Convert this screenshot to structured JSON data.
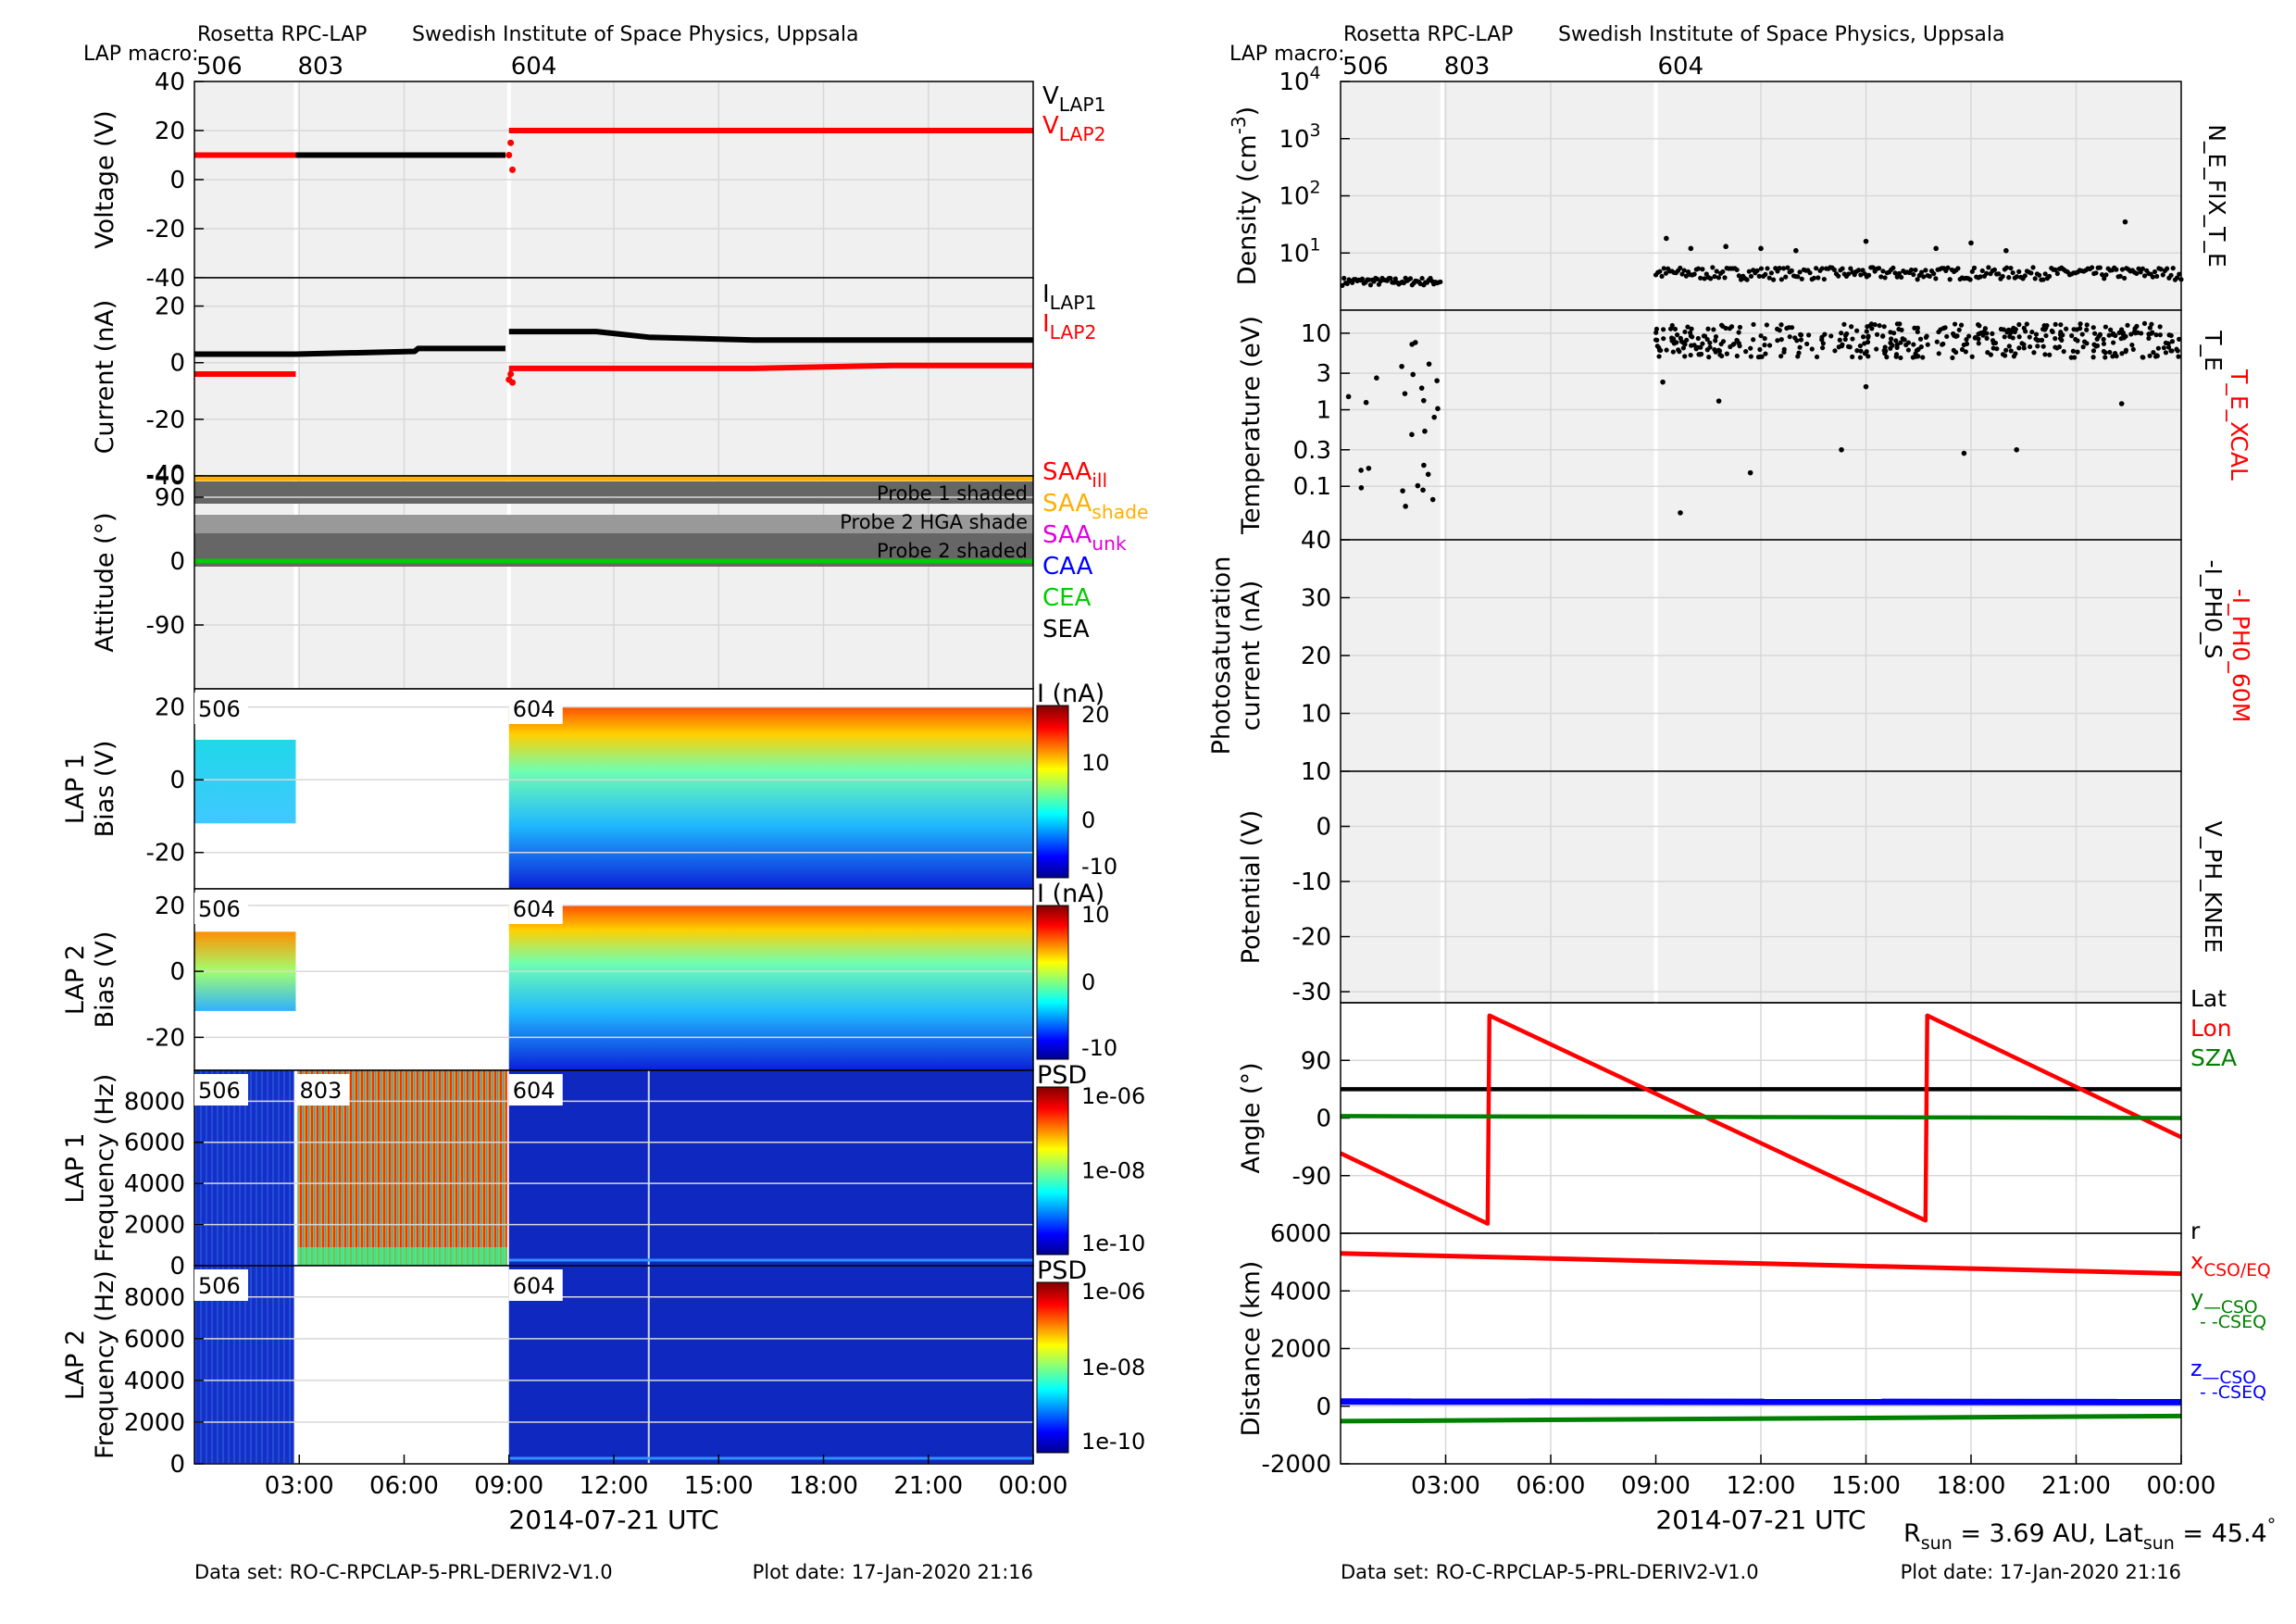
{
  "header": {
    "left_title": "Rosetta RPC-LAP",
    "institute": "Swedish Institute of Space Physics, Uppsala",
    "macro_label": "LAP macro:",
    "macros": [
      {
        "label": "506",
        "t": 0.0
      },
      {
        "label": "803",
        "t": 2.9
      },
      {
        "label": "604",
        "t": 9.0
      }
    ]
  },
  "footer": {
    "dataset": "Data set: RO-C-RPCLAP-5-PRL-DERIV2-V1.0",
    "plot_date": "Plot date: 17-Jan-2020 21:16",
    "xlabel": "2014-07-21 UTC",
    "rsun": "R",
    "rsun_sub": "sun",
    "rsun_val": " = 3.69 AU, Lat",
    "lat_sub": "sun",
    "lat_val": " = 45.4",
    "deg": "°"
  },
  "time_ticks": [
    "03:00",
    "06:00",
    "09:00",
    "12:00",
    "15:00",
    "18:00",
    "21:00",
    "00:00"
  ],
  "colors": {
    "red": "#ff0000",
    "black": "#000000",
    "green": "#00cc00",
    "dkgreen": "#008000",
    "orange": "#ffb000",
    "magenta": "#e000e0",
    "blue": "#0000ff",
    "spec_bg": "#0a1fb0"
  },
  "chart_data": [
    {
      "type": "scatter",
      "id": "voltage",
      "ylabel": "Voltage (V)",
      "ylim": [
        -40,
        40
      ],
      "yticks": [
        "40",
        "20",
        "0",
        "-20",
        "-40"
      ],
      "legend": [
        {
          "main": "V",
          "sub": "LAP1",
          "color": "#000000"
        },
        {
          "main": "V",
          "sub": "LAP2",
          "color": "#ff0000"
        }
      ],
      "series": [
        {
          "name": "V_LAP2",
          "color": "#ff0000",
          "segments": [
            {
              "t0": 0,
              "t1": 2.9,
              "y": 10
            },
            {
              "t0": 9.0,
              "t1": 24,
              "y": 20
            }
          ],
          "outliers": [
            [
              9.0,
              10
            ],
            [
              9.05,
              15
            ],
            [
              9.1,
              4
            ]
          ]
        },
        {
          "name": "V_LAP1",
          "color": "#000000",
          "segments": [
            {
              "t0": 2.9,
              "t1": 8.9,
              "y": 10
            }
          ]
        }
      ]
    },
    {
      "type": "scatter",
      "id": "current",
      "ylabel": "Current (nA)",
      "ylim": [
        -40,
        30
      ],
      "yticks": [
        "20",
        "0",
        "-20",
        "-40"
      ],
      "legend": [
        {
          "main": "I",
          "sub": "LAP1",
          "color": "#000000"
        },
        {
          "main": "I",
          "sub": "LAP2",
          "color": "#ff0000"
        }
      ],
      "series": [
        {
          "name": "I_LAP1",
          "color": "#000000",
          "points": [
            [
              0,
              3
            ],
            [
              2.9,
              3
            ],
            [
              6.3,
              4
            ],
            [
              6.4,
              5
            ],
            [
              8.9,
              5
            ],
            [
              9.0,
              11
            ],
            [
              11.5,
              11
            ],
            [
              13,
              9
            ],
            [
              16,
              8
            ],
            [
              24,
              8
            ]
          ]
        },
        {
          "name": "I_LAP2",
          "color": "#ff0000",
          "points": [
            [
              0,
              -4
            ],
            [
              2.9,
              -4
            ],
            [
              9.0,
              -2
            ],
            [
              16,
              -2
            ],
            [
              20,
              -1
            ],
            [
              24,
              -1
            ]
          ],
          "outliers": [
            [
              9.0,
              -6
            ],
            [
              9.05,
              -4
            ],
            [
              9.1,
              -7
            ]
          ]
        }
      ]
    },
    {
      "type": "area",
      "id": "attitude",
      "ylabel": "Attitude (°)",
      "ylim": [
        -180,
        120
      ],
      "yticks": [
        "90",
        "0",
        "-90"
      ],
      "annotations": [
        "Probe 1 shaded",
        "Probe 2 HGA shade",
        "Probe 2 shaded"
      ],
      "legend": [
        {
          "main": "SAA",
          "sub": "ill",
          "color": "#ff0000"
        },
        {
          "main": "SAA",
          "sub": "shade",
          "color": "#ffb000"
        },
        {
          "main": "SAA",
          "sub": "unk",
          "color": "#e000e0"
        },
        {
          "main": "CAA",
          "sub": "",
          "color": "#0000ff"
        },
        {
          "main": "CEA",
          "sub": "",
          "color": "#00cc00"
        },
        {
          "main": "SEA",
          "sub": "",
          "color": "#000000"
        }
      ],
      "series": [
        {
          "name": "CEA",
          "color": "#00cc00",
          "y": 0
        },
        {
          "name": "SAA shade",
          "color": "#ffb000",
          "y": 118
        }
      ]
    },
    {
      "type": "heatmap",
      "id": "lap1bias",
      "ylabel": "LAP 1",
      "ylabel2": "Bias (V)",
      "ylim": [
        -30,
        25
      ],
      "yticks": [
        "20",
        "0",
        "-20"
      ],
      "colorbar": {
        "label": "I (nA)",
        "ticks": [
          "20",
          "10",
          "0",
          "-10"
        ],
        "range": [
          -15,
          20
        ]
      },
      "labels": [
        {
          "text": "506",
          "t": 0
        },
        {
          "text": "604",
          "t": 9.0
        }
      ],
      "blocks": [
        {
          "t0": 0,
          "t1": 2.9,
          "y0": -12,
          "y1": 11
        },
        {
          "t0": 9.0,
          "t1": 24,
          "y0": -30,
          "y1": 20
        }
      ]
    },
    {
      "type": "heatmap",
      "id": "lap2bias",
      "ylabel": "LAP 2",
      "ylabel2": "Bias (V)",
      "ylim": [
        -30,
        25
      ],
      "yticks": [
        "20",
        "0",
        "-20"
      ],
      "colorbar": {
        "label": "I (nA)",
        "ticks": [
          "10",
          "0",
          "-10"
        ],
        "range": [
          -13,
          13
        ]
      },
      "labels": [
        {
          "text": "506",
          "t": 0
        },
        {
          "text": "604",
          "t": 9.0
        }
      ],
      "blocks": [
        {
          "t0": 0,
          "t1": 2.9,
          "y0": -12,
          "y1": 12
        },
        {
          "t0": 9.0,
          "t1": 24,
          "y0": -30,
          "y1": 20
        }
      ]
    },
    {
      "type": "heatmap",
      "id": "lap1psd",
      "ylabel": "LAP 1",
      "ylabel2": "Frequency (Hz)",
      "ylim": [
        0,
        9500
      ],
      "yticks": [
        "8000",
        "6000",
        "4000",
        "2000",
        "0"
      ],
      "colorbar": {
        "label": "PSD",
        "ticks": [
          "1e-06",
          "1e-08",
          "1e-10"
        ]
      },
      "labels": [
        {
          "text": "506",
          "t": 0
        },
        {
          "text": "803",
          "t": 2.9
        },
        {
          "text": "604",
          "t": 9.0
        }
      ]
    },
    {
      "type": "heatmap",
      "id": "lap2psd",
      "ylabel": "LAP 2",
      "ylabel2": "Frequency (Hz)",
      "ylim": [
        0,
        9500
      ],
      "yticks": [
        "8000",
        "6000",
        "4000",
        "2000",
        "0"
      ],
      "colorbar": {
        "label": "PSD",
        "ticks": [
          "1e-06",
          "1e-08",
          "1e-10"
        ]
      },
      "labels": [
        {
          "text": "506",
          "t": 0
        },
        {
          "text": "604",
          "t": 9.0
        }
      ]
    },
    {
      "type": "scatter",
      "id": "density",
      "ylabel": "Density (cm",
      "ylabel_sup": "-3",
      "ylabel_end": ")",
      "yscale": "log",
      "ylim": [
        1,
        10000
      ],
      "yticks": [
        {
          "b": "10",
          "e": "4"
        },
        {
          "b": "10",
          "e": "3"
        },
        {
          "b": "10",
          "e": "2"
        },
        {
          "b": "10",
          "e": "1"
        }
      ],
      "side_labels": [
        {
          "text": "N_E_FIX_T_E",
          "color": "#000000"
        }
      ],
      "series": [
        {
          "name": "N_E_FIX_T_E",
          "color": "#000000",
          "ranges": [
            {
              "t0": 0,
              "t1": 2.9,
              "y": 3.2
            },
            {
              "t0": 9.0,
              "t1": 24,
              "y": 4.5
            }
          ]
        }
      ]
    },
    {
      "type": "scatter",
      "id": "temperature",
      "ylabel": "Temperature (eV)",
      "yscale": "log",
      "ylim": [
        0.02,
        20
      ],
      "yticks": [
        "10",
        "3",
        "1",
        "0.3",
        "0.1"
      ],
      "side_labels": [
        {
          "text": "T_E",
          "color": "#000000"
        },
        {
          "text": "T_E_XCAL",
          "color": "#ff0000"
        }
      ],
      "series": [
        {
          "name": "T_E",
          "color": "#000000",
          "ranges": [
            {
              "t0": 0,
              "t1": 2.9,
              "y": 3
            },
            {
              "t0": 9.0,
              "t1": 24,
              "y": 8
            }
          ]
        }
      ]
    },
    {
      "type": "scatter",
      "id": "photosat",
      "ylabel": "Photosaturation",
      "ylabel2": "current (nA)",
      "ylim": [
        0,
        40
      ],
      "yticks": [
        "40",
        "30",
        "20",
        "10"
      ],
      "side_labels": [
        {
          "text": "-I_PH0_S",
          "color": "#000000"
        },
        {
          "text": "-I_PH0_60M",
          "color": "#ff0000"
        }
      ]
    },
    {
      "type": "scatter",
      "id": "potential",
      "ylabel": "Potential (V)",
      "ylim": [
        -32,
        10
      ],
      "yticks": [
        "10",
        "0",
        "-10",
        "-20",
        "-30"
      ],
      "side_labels": [
        {
          "text": "V_PH_KNEE",
          "color": "#000000"
        }
      ]
    },
    {
      "type": "line",
      "id": "angle",
      "ylabel": "Angle (°)",
      "ylim": [
        -180,
        180
      ],
      "yticks": [
        "90",
        "0",
        "-90"
      ],
      "legend": [
        {
          "main": "Lat",
          "sub": "",
          "color": "#000000"
        },
        {
          "main": "Lon",
          "sub": "",
          "color": "#ff0000"
        },
        {
          "main": "SZA",
          "sub": "",
          "color": "#008000"
        }
      ],
      "series": [
        {
          "name": "Lat",
          "color": "#000000",
          "points": [
            [
              0,
              45
            ],
            [
              24,
              45
            ]
          ]
        },
        {
          "name": "Lon",
          "color": "#ff0000",
          "points": [
            [
              0,
              -55
            ],
            [
              4.2,
              -165
            ],
            [
              4.25,
              160
            ],
            [
              16.7,
              -160
            ],
            [
              16.75,
              160
            ],
            [
              24,
              -30
            ]
          ]
        },
        {
          "name": "SZA",
          "color": "#008000",
          "points": [
            [
              0,
              3
            ],
            [
              24,
              0
            ]
          ]
        }
      ]
    },
    {
      "type": "line",
      "id": "distance",
      "ylabel": "Distance (km)",
      "ylim": [
        -2000,
        6000
      ],
      "yticks": [
        "6000",
        "4000",
        "2000",
        "0",
        "-2000"
      ],
      "legend_top": "r",
      "legend": [
        {
          "main": "x",
          "sub": "CSO/EQ",
          "color": "#ff0000"
        },
        {
          "main": "y",
          "sub": "—CSO",
          "color": "#008000",
          "extra": "- -CSEQ"
        },
        {
          "main": "z",
          "sub": "—CSO",
          "color": "#0000ff",
          "extra": "- -CSEQ"
        }
      ],
      "series": [
        {
          "name": "x",
          "color": "#ff0000",
          "points": [
            [
              0,
              5300
            ],
            [
              24,
              4600
            ]
          ]
        },
        {
          "name": "y",
          "color": "#008000",
          "points": [
            [
              0,
              -520
            ],
            [
              24,
              -340
            ]
          ]
        },
        {
          "name": "z",
          "color": "#0000ff",
          "points": [
            [
              0,
              160
            ],
            [
              24,
              140
            ]
          ]
        }
      ]
    }
  ]
}
